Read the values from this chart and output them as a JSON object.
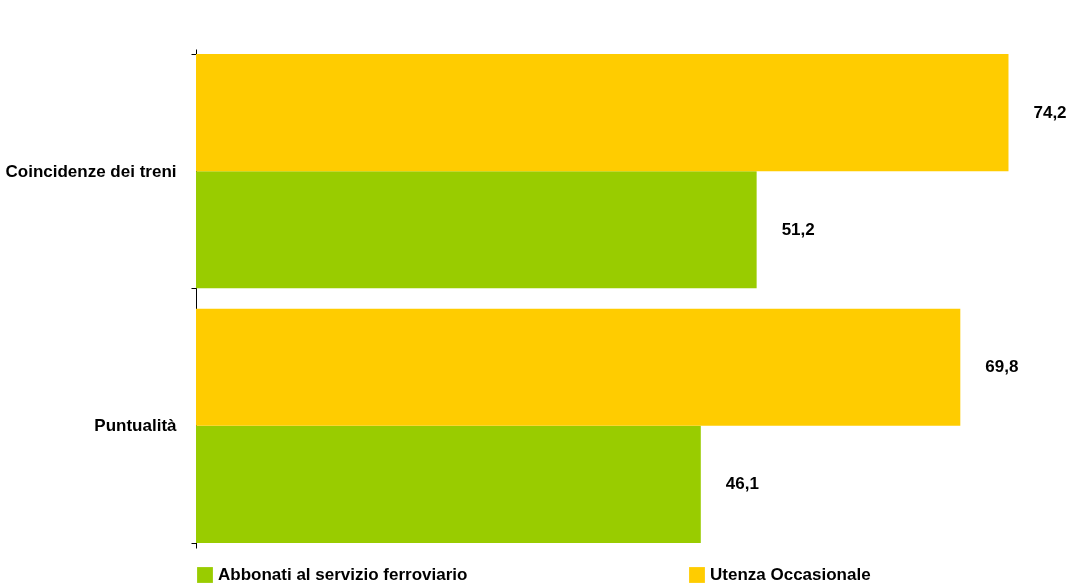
{
  "chart_data": {
    "type": "bar",
    "orientation": "horizontal",
    "categories": [
      "Coincidenze dei treni",
      "Puntualità"
    ],
    "series": [
      {
        "name": "Abbonati al servizio ferroviario",
        "color": "#99cc00",
        "values": [
          51.2,
          46.1
        ],
        "value_labels": [
          "51,2",
          "46,1"
        ]
      },
      {
        "name": "Utenza Occasionale",
        "color": "#ffcc00",
        "values": [
          74.2,
          69.8
        ],
        "value_labels": [
          "74,2",
          "69,8"
        ]
      }
    ],
    "legend": "bottom",
    "grid": false
  }
}
